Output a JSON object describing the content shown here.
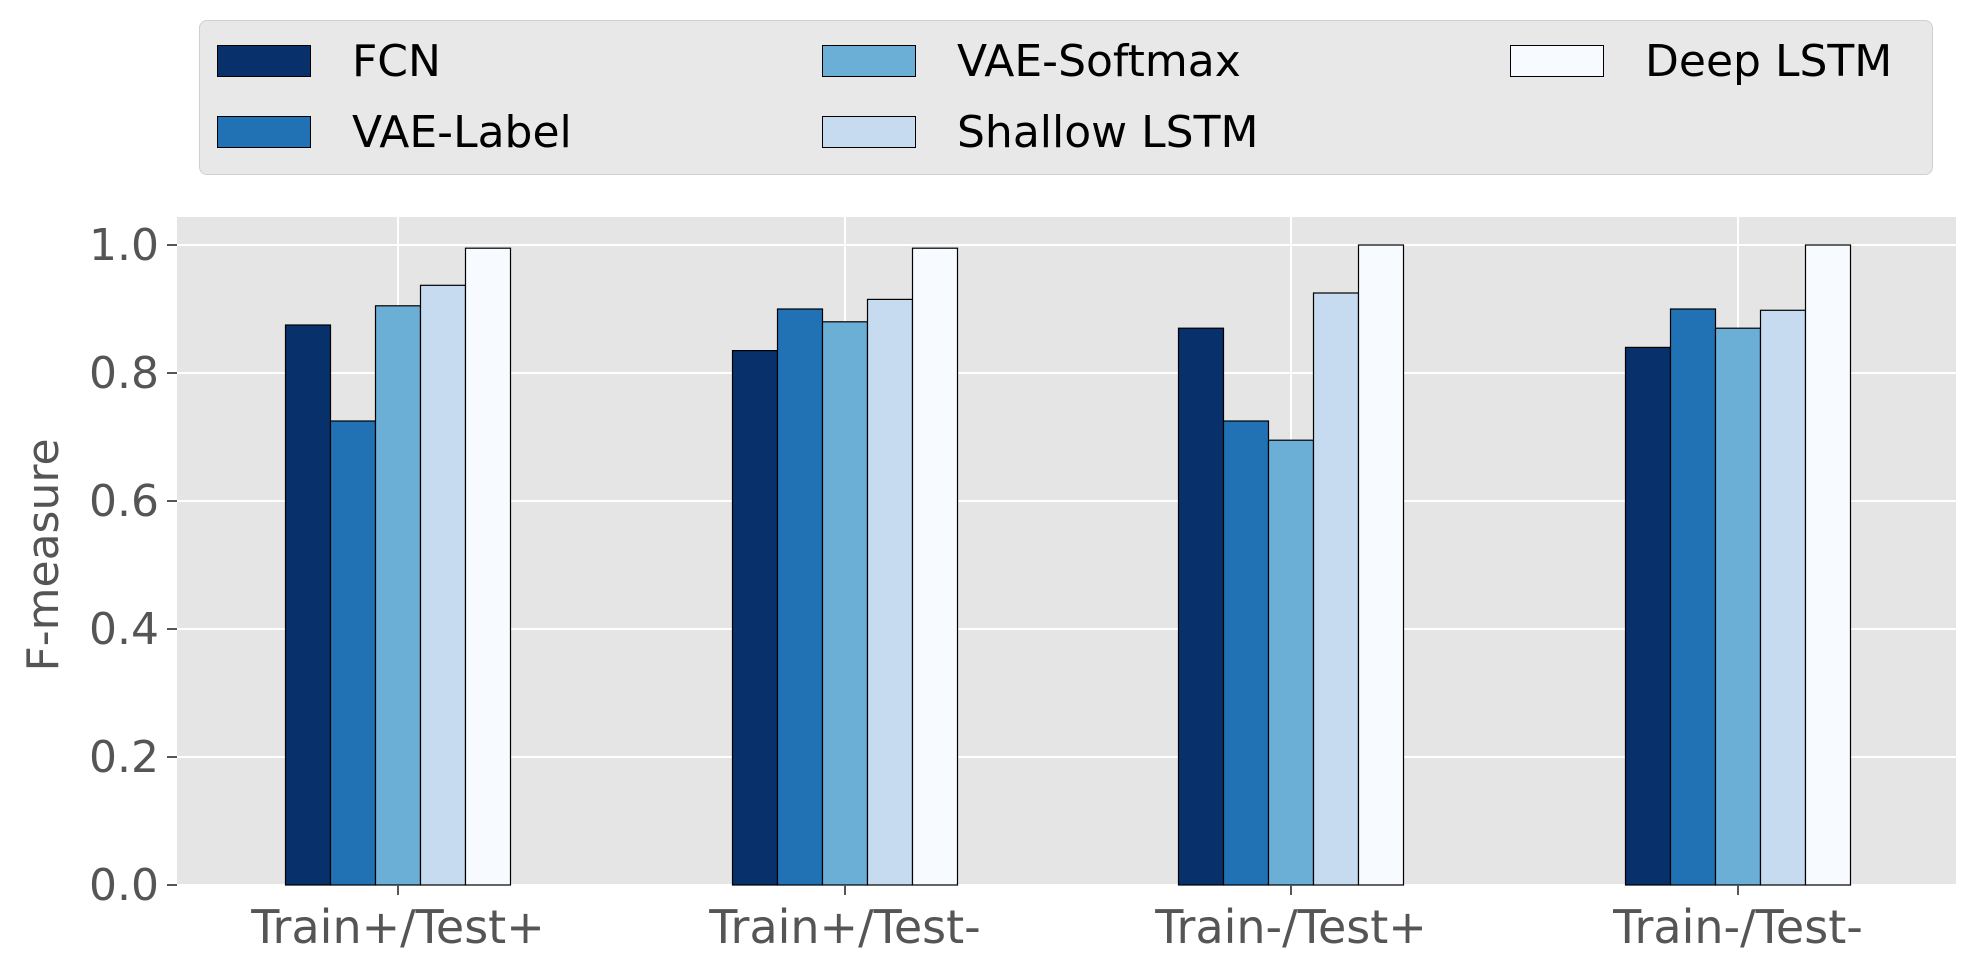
{
  "chart_data": {
    "type": "bar",
    "title": "",
    "xlabel": "",
    "ylabel": "F-measure",
    "ylim": [
      0,
      1.05
    ],
    "yticks": [
      "0.0",
      "0.2",
      "0.4",
      "0.6",
      "0.8",
      "1.0"
    ],
    "grid": true,
    "legend_position": "top",
    "categories": [
      "Train+/Test+",
      "Train+/Test-",
      "Train-/Test+",
      "Train-/Test-"
    ],
    "series": [
      {
        "name": "FCN",
        "color": "#08306b",
        "values": [
          0.875,
          0.835,
          0.87,
          0.84
        ]
      },
      {
        "name": "VAE-Label",
        "color": "#2171b5",
        "values": [
          0.725,
          0.9,
          0.725,
          0.9
        ]
      },
      {
        "name": "VAE-Softmax",
        "color": "#6baed6",
        "values": [
          0.905,
          0.88,
          0.695,
          0.87
        ]
      },
      {
        "name": "Shallow LSTM",
        "color": "#c6dbef",
        "values": [
          0.937,
          0.915,
          0.925,
          0.898
        ]
      },
      {
        "name": "Deep LSTM",
        "color": "#f7fbff",
        "values": [
          0.995,
          0.995,
          1.0,
          1.0
        ]
      }
    ]
  }
}
